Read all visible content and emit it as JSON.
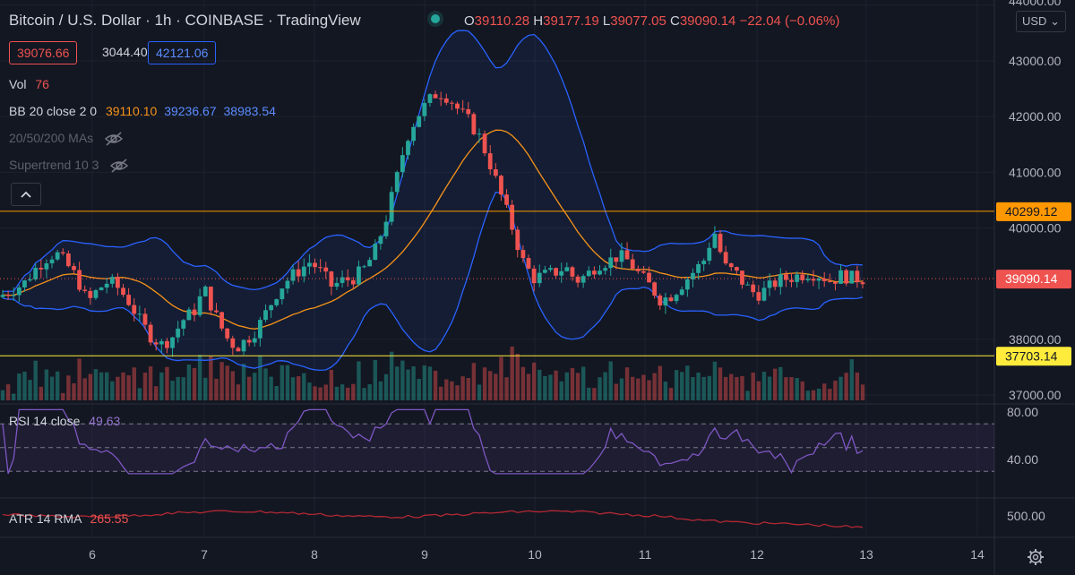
{
  "header": {
    "symbol": "Bitcoin / U.S. Dollar · 1h · COINBASE · TradingView",
    "status_dot_color": "#26a69a"
  },
  "ohlc": {
    "o_label": "O",
    "o": "39110.28",
    "h_label": "H",
    "h": "39177.19",
    "l_label": "L",
    "l": "39077.05",
    "c_label": "C",
    "c": "39090.14",
    "change": "−22.04 (−0.06%)"
  },
  "quote": {
    "bid": "39076.66",
    "spread": "3044.40",
    "ask": "42121.06"
  },
  "indicators": {
    "vol_label": "Vol",
    "vol_value": "76",
    "bb_label": "BB 20 close 2 0",
    "bb_basis": "39110.10",
    "bb_upper": "39236.67",
    "bb_lower": "38983.54",
    "ma_label": "20/50/200 MAs",
    "st_label": "Supertrend 10 3",
    "rsi_label": "RSI 14 close",
    "rsi_value": "49.63",
    "atr_label": "ATR 14 RMA",
    "atr_value": "265.55"
  },
  "currency_button": "USD",
  "price_axis": {
    "ticks": [
      "44000.00",
      "43000.00",
      "42000.00",
      "41000.00",
      "40000.00",
      "38000.00",
      "37000.00"
    ],
    "tick_values": [
      44000,
      43000,
      42000,
      41000,
      40000,
      38000,
      37000
    ],
    "current_price": "39090.14",
    "resistance_label": "40299.12",
    "support_label": "37703.14",
    "resistance_value": 40299.12,
    "support_value": 37703.14,
    "current_value": 39090.14
  },
  "rsi_axis": {
    "ticks": [
      "80.00",
      "40.00"
    ],
    "tick_values": [
      80,
      40
    ],
    "band_upper": 70,
    "band_lower": 30
  },
  "atr_axis": {
    "ticks": [
      "500.00"
    ]
  },
  "time_axis": {
    "labels": [
      "6",
      "7",
      "8",
      "9",
      "10",
      "11",
      "12",
      "13",
      "14"
    ]
  },
  "colors": {
    "background": "#131722",
    "up": "#26a69a",
    "down": "#ef5350",
    "bb_band": "#2962ff",
    "bb_basis": "#f7931a",
    "resistance": "#ff9800",
    "support": "#ffeb3b",
    "rsi": "#7e57c2",
    "atr": "#b22833"
  },
  "chart_data": {
    "type": "candlestick",
    "x": [
      "6",
      "7",
      "8",
      "9",
      "10",
      "11",
      "12",
      "13"
    ],
    "price_close_waypoints": [
      38800,
      38900,
      39000,
      39250,
      39450,
      39550,
      39350,
      39100,
      38650,
      38900,
      39050,
      38900,
      38650,
      38300,
      38050,
      37900,
      38050,
      38350,
      38500,
      38900,
      38450,
      38050,
      37850,
      38000,
      38200,
      38550,
      38900,
      39100,
      39250,
      39400,
      39200,
      38950,
      39050,
      39100,
      39250,
      39550,
      40100,
      40800,
      41600,
      42000,
      42250,
      42450,
      42350,
      42100,
      41900,
      41600,
      41100,
      40550,
      40000,
      39400,
      39100,
      39150,
      39200,
      39300,
      39050,
      39150,
      39350,
      39400,
      39500,
      39400,
      39150,
      38950,
      38700,
      38800,
      39000,
      39200,
      39400,
      39950,
      39300,
      39200,
      38950,
      38800,
      38900,
      39050,
      39100,
      39150,
      39200,
      39150,
      39050,
      39150,
      39100,
      39090
    ]
  }
}
